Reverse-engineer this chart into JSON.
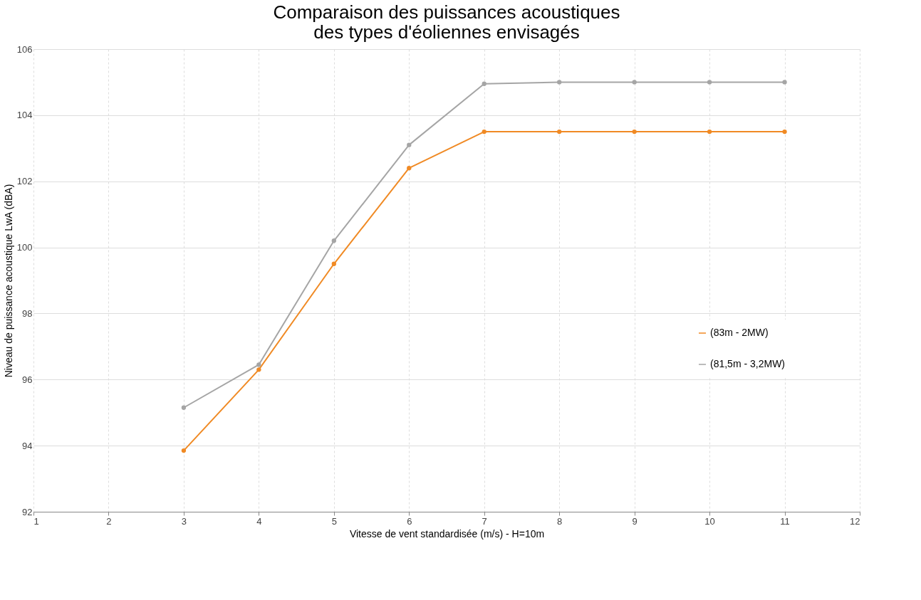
{
  "chart_data": {
    "type": "line",
    "title": [
      "Comparaison des puissances acoustiques",
      "des types d'éoliennes envisagés"
    ],
    "xlabel": "Vitesse de vent standardisée (m/s) - H=10m",
    "ylabel": "Niveau de puissance acoustique LwA (dBA)",
    "x": [
      3,
      4,
      5,
      6,
      7,
      8,
      9,
      10,
      11
    ],
    "series": [
      {
        "name": "(83m - 2MW)",
        "color": "#f08a24",
        "values": [
          93.85,
          96.3,
          99.5,
          102.4,
          103.5,
          103.5,
          103.5,
          103.5,
          103.5
        ]
      },
      {
        "name": "(81,5m - 3,2MW)",
        "color": "#a5a5a5",
        "values": [
          95.15,
          96.45,
          100.2,
          103.1,
          104.95,
          105.0,
          105.0,
          105.0,
          105.0
        ]
      }
    ],
    "xlim": [
      1,
      12
    ],
    "xticks": [
      1,
      2,
      3,
      4,
      5,
      6,
      7,
      8,
      9,
      10,
      11,
      12
    ],
    "ylim": [
      92,
      106
    ],
    "yticks": [
      92,
      94,
      96,
      98,
      100,
      102,
      104,
      106
    ],
    "grid": true,
    "legend": "right",
    "marker": "circle",
    "line_style": "solid"
  }
}
